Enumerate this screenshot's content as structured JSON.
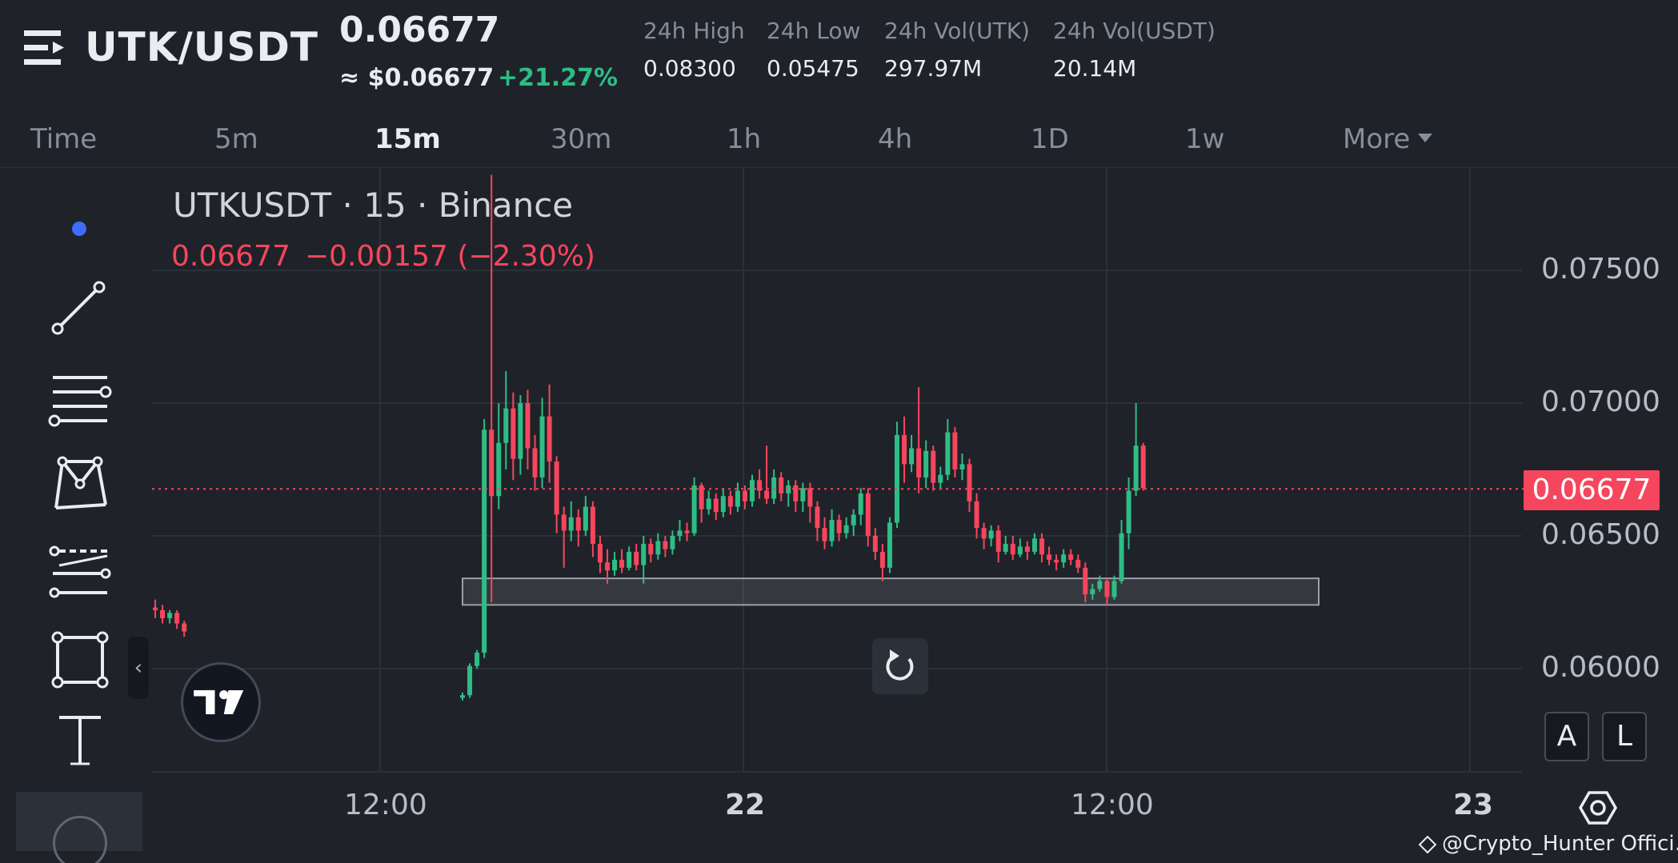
{
  "header": {
    "pair": "UTK/USDT",
    "price": "0.06677",
    "approx_price": "≈ $0.06677",
    "change_pct": "+21.27%",
    "stats": [
      {
        "label": "24h High",
        "value": "0.08300"
      },
      {
        "label": "24h Low",
        "value": "0.05475"
      },
      {
        "label": "24h Vol(UTK)",
        "value": "297.97M"
      },
      {
        "label": "24h Vol(USDT)",
        "value": "20.14M"
      }
    ]
  },
  "intervals": {
    "time": "Time",
    "items": [
      "5m",
      "15m",
      "30m",
      "1h",
      "4h",
      "1D",
      "1w"
    ],
    "active": "15m",
    "more": "More"
  },
  "chart": {
    "title": "UTKUSDT · 15 · Binance",
    "ohlc_price": "0.06677",
    "ohlc_change": "−0.00157 (−2.30%)",
    "last_price_tag": "0.06677",
    "y_ticks": [
      "0.07500",
      "0.07000",
      "0.06500",
      "0.06000"
    ],
    "x_ticks": [
      "12:00",
      "22",
      "12:00",
      "23"
    ],
    "buttons": {
      "auto": "A",
      "log": "L"
    },
    "colors": {
      "up": "#2ebd85",
      "down": "#f6465d",
      "box": "#9aa0a8"
    }
  },
  "chart_data": {
    "type": "candlestick",
    "title": "UTKUSDT · 15 · Binance",
    "ylim": [
      0.0578,
      0.0786
    ],
    "y_ticks": [
      0.075,
      0.07,
      0.065,
      0.06
    ],
    "x_ticks": [
      "12:00",
      "22",
      "12:00",
      "23"
    ],
    "last_price": 0.06677,
    "grid": true,
    "candles": [
      [
        0.0623,
        0.0622,
        0.0626,
        0.0619
      ],
      [
        0.0622,
        0.0619,
        0.0624,
        0.0617
      ],
      [
        0.0619,
        0.0621,
        0.0622,
        0.0617
      ],
      [
        0.0621,
        0.0617,
        0.0622,
        0.0615
      ],
      [
        0.0617,
        0.0614,
        0.0618,
        0.0612
      ],
      [
        0.0589,
        0.059,
        0.0591,
        0.0588
      ],
      [
        0.059,
        0.0601,
        0.0602,
        0.0589
      ],
      [
        0.0601,
        0.0606,
        0.0607,
        0.06
      ],
      [
        0.0606,
        0.069,
        0.0694,
        0.0604
      ],
      [
        0.069,
        0.0665,
        0.0786,
        0.0625
      ],
      [
        0.0665,
        0.0685,
        0.07,
        0.066
      ],
      [
        0.0685,
        0.0698,
        0.0712,
        0.0675
      ],
      [
        0.0698,
        0.0679,
        0.0704,
        0.0671
      ],
      [
        0.0679,
        0.07,
        0.0703,
        0.0673
      ],
      [
        0.07,
        0.0683,
        0.0705,
        0.0675
      ],
      [
        0.0683,
        0.0672,
        0.0688,
        0.0667
      ],
      [
        0.0672,
        0.0695,
        0.0702,
        0.0668
      ],
      [
        0.0695,
        0.0678,
        0.0707,
        0.067
      ],
      [
        0.0678,
        0.0658,
        0.068,
        0.0651
      ],
      [
        0.0658,
        0.0652,
        0.0661,
        0.0638
      ],
      [
        0.0652,
        0.0657,
        0.0663,
        0.0648
      ],
      [
        0.0657,
        0.0652,
        0.066,
        0.0646
      ],
      [
        0.0652,
        0.0661,
        0.0665,
        0.065
      ],
      [
        0.0661,
        0.0647,
        0.0663,
        0.0642
      ],
      [
        0.0647,
        0.064,
        0.065,
        0.0636
      ],
      [
        0.064,
        0.0637,
        0.0645,
        0.0632
      ],
      [
        0.0637,
        0.0641,
        0.0644,
        0.0635
      ],
      [
        0.0641,
        0.0638,
        0.0645,
        0.0636
      ],
      [
        0.0638,
        0.0644,
        0.0646,
        0.0637
      ],
      [
        0.0644,
        0.0639,
        0.0647,
        0.0637
      ],
      [
        0.0639,
        0.0647,
        0.065,
        0.0632
      ],
      [
        0.0647,
        0.0643,
        0.0649,
        0.064
      ],
      [
        0.0643,
        0.0648,
        0.0651,
        0.0641
      ],
      [
        0.0648,
        0.0645,
        0.065,
        0.0642
      ],
      [
        0.0645,
        0.065,
        0.0652,
        0.0643
      ],
      [
        0.065,
        0.0652,
        0.0656,
        0.0648
      ],
      [
        0.0652,
        0.0651,
        0.0655,
        0.0648
      ],
      [
        0.0651,
        0.0669,
        0.0672,
        0.065
      ],
      [
        0.0669,
        0.066,
        0.067,
        0.0655
      ],
      [
        0.066,
        0.0664,
        0.0667,
        0.0658
      ],
      [
        0.0664,
        0.0659,
        0.0666,
        0.0656
      ],
      [
        0.0659,
        0.0665,
        0.0668,
        0.0657
      ],
      [
        0.0665,
        0.0661,
        0.0667,
        0.0658
      ],
      [
        0.0661,
        0.0667,
        0.067,
        0.0659
      ],
      [
        0.0667,
        0.0663,
        0.0669,
        0.066
      ],
      [
        0.0663,
        0.0671,
        0.0673,
        0.0661
      ],
      [
        0.0671,
        0.0667,
        0.0675,
        0.0664
      ],
      [
        0.0667,
        0.0664,
        0.0684,
        0.0662
      ],
      [
        0.0664,
        0.0672,
        0.0675,
        0.0662
      ],
      [
        0.0672,
        0.0666,
        0.0674,
        0.0663
      ],
      [
        0.0666,
        0.0669,
        0.0671,
        0.0661
      ],
      [
        0.0669,
        0.0663,
        0.0671,
        0.0659
      ],
      [
        0.0663,
        0.0668,
        0.067,
        0.0659
      ],
      [
        0.0668,
        0.0661,
        0.067,
        0.0655
      ],
      [
        0.0661,
        0.0653,
        0.0663,
        0.0648
      ],
      [
        0.0653,
        0.0648,
        0.0657,
        0.0645
      ],
      [
        0.0648,
        0.0656,
        0.066,
        0.0646
      ],
      [
        0.0656,
        0.0651,
        0.0658,
        0.0648
      ],
      [
        0.0651,
        0.0654,
        0.0657,
        0.0649
      ],
      [
        0.0654,
        0.0658,
        0.066,
        0.065
      ],
      [
        0.0658,
        0.0666,
        0.0668,
        0.0654
      ],
      [
        0.0666,
        0.065,
        0.0668,
        0.0646
      ],
      [
        0.065,
        0.0644,
        0.0653,
        0.0641
      ],
      [
        0.0644,
        0.0638,
        0.0647,
        0.0633
      ],
      [
        0.0638,
        0.0655,
        0.0657,
        0.0636
      ],
      [
        0.0655,
        0.0688,
        0.0693,
        0.0653
      ],
      [
        0.0688,
        0.0677,
        0.0695,
        0.067
      ],
      [
        0.0677,
        0.0683,
        0.0688,
        0.0674
      ],
      [
        0.0683,
        0.0672,
        0.0706,
        0.0666
      ],
      [
        0.0672,
        0.0682,
        0.0686,
        0.0668
      ],
      [
        0.0682,
        0.067,
        0.0684,
        0.0667
      ],
      [
        0.067,
        0.0673,
        0.0676,
        0.0668
      ],
      [
        0.0673,
        0.0689,
        0.0694,
        0.0671
      ],
      [
        0.0689,
        0.0675,
        0.0691,
        0.0672
      ],
      [
        0.0675,
        0.0677,
        0.0681,
        0.0671
      ],
      [
        0.0677,
        0.0663,
        0.0679,
        0.0659
      ],
      [
        0.0663,
        0.0653,
        0.0666,
        0.0649
      ],
      [
        0.0653,
        0.0649,
        0.0655,
        0.0645
      ],
      [
        0.0649,
        0.0652,
        0.0654,
        0.0646
      ],
      [
        0.0652,
        0.0644,
        0.0654,
        0.064
      ],
      [
        0.0644,
        0.0647,
        0.065,
        0.0643
      ],
      [
        0.0647,
        0.0643,
        0.065,
        0.0641
      ],
      [
        0.0643,
        0.0646,
        0.0649,
        0.0642
      ],
      [
        0.0646,
        0.0644,
        0.0648,
        0.0641
      ],
      [
        0.0644,
        0.0649,
        0.0651,
        0.0643
      ],
      [
        0.0649,
        0.0643,
        0.0651,
        0.064
      ],
      [
        0.0643,
        0.0641,
        0.0646,
        0.0639
      ],
      [
        0.0641,
        0.064,
        0.0643,
        0.0637
      ],
      [
        0.064,
        0.0643,
        0.0645,
        0.0638
      ],
      [
        0.0643,
        0.0641,
        0.0645,
        0.0639
      ],
      [
        0.0641,
        0.0638,
        0.0643,
        0.0636
      ],
      [
        0.0638,
        0.0628,
        0.064,
        0.0625
      ],
      [
        0.0628,
        0.063,
        0.0632,
        0.0626
      ],
      [
        0.063,
        0.0633,
        0.0635,
        0.0629
      ],
      [
        0.0633,
        0.0627,
        0.0634,
        0.0624
      ],
      [
        0.0627,
        0.0633,
        0.0635,
        0.0626
      ],
      [
        0.0633,
        0.0651,
        0.0656,
        0.0632
      ],
      [
        0.0651,
        0.0667,
        0.0672,
        0.0645
      ],
      [
        0.0667,
        0.0684,
        0.07,
        0.0665
      ],
      [
        0.0684,
        0.0668,
        0.0685,
        0.0667
      ]
    ],
    "support_zone": {
      "low": 0.0624,
      "high": 0.0634,
      "from_candle": 8,
      "to_candle": 117
    }
  }
}
